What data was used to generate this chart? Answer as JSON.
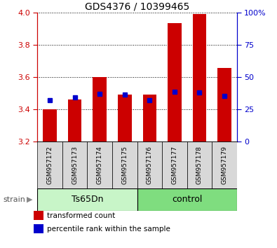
{
  "title": "GDS4376 / 10399465",
  "samples": [
    "GSM957172",
    "GSM957173",
    "GSM957174",
    "GSM957175",
    "GSM957176",
    "GSM957177",
    "GSM957178",
    "GSM957179"
  ],
  "red_values": [
    3.4,
    3.46,
    3.6,
    3.49,
    3.49,
    3.935,
    3.99,
    3.655
  ],
  "blue_values": [
    3.455,
    3.475,
    3.495,
    3.49,
    3.455,
    3.508,
    3.505,
    3.48
  ],
  "y_min": 3.2,
  "y_max": 4.0,
  "y_ticks": [
    3.2,
    3.4,
    3.6,
    3.8,
    4.0
  ],
  "y_right_ticks": [
    0,
    25,
    50,
    75,
    100
  ],
  "y_right_labels": [
    "0",
    "25",
    "50",
    "75",
    "100%"
  ],
  "red_color": "#cc0000",
  "blue_color": "#0000cc",
  "bar_width": 0.55,
  "groups": [
    {
      "label": "Ts65Dn",
      "start": 0,
      "end": 4,
      "color": "#c8f5c8"
    },
    {
      "label": "control",
      "start": 4,
      "end": 8,
      "color": "#7fdd7f"
    }
  ],
  "strain_label": "strain",
  "legend_items": [
    {
      "color": "#cc0000",
      "label": "transformed count"
    },
    {
      "color": "#0000cc",
      "label": "percentile rank within the sample"
    }
  ],
  "title_fontsize": 10,
  "tick_fontsize": 8,
  "sample_fontsize": 6.5,
  "group_fontsize": 9,
  "legend_fontsize": 7.5,
  "plot_bg": "#ffffff",
  "sample_box_color": "#d8d8d8",
  "fig_bg": "#ffffff"
}
